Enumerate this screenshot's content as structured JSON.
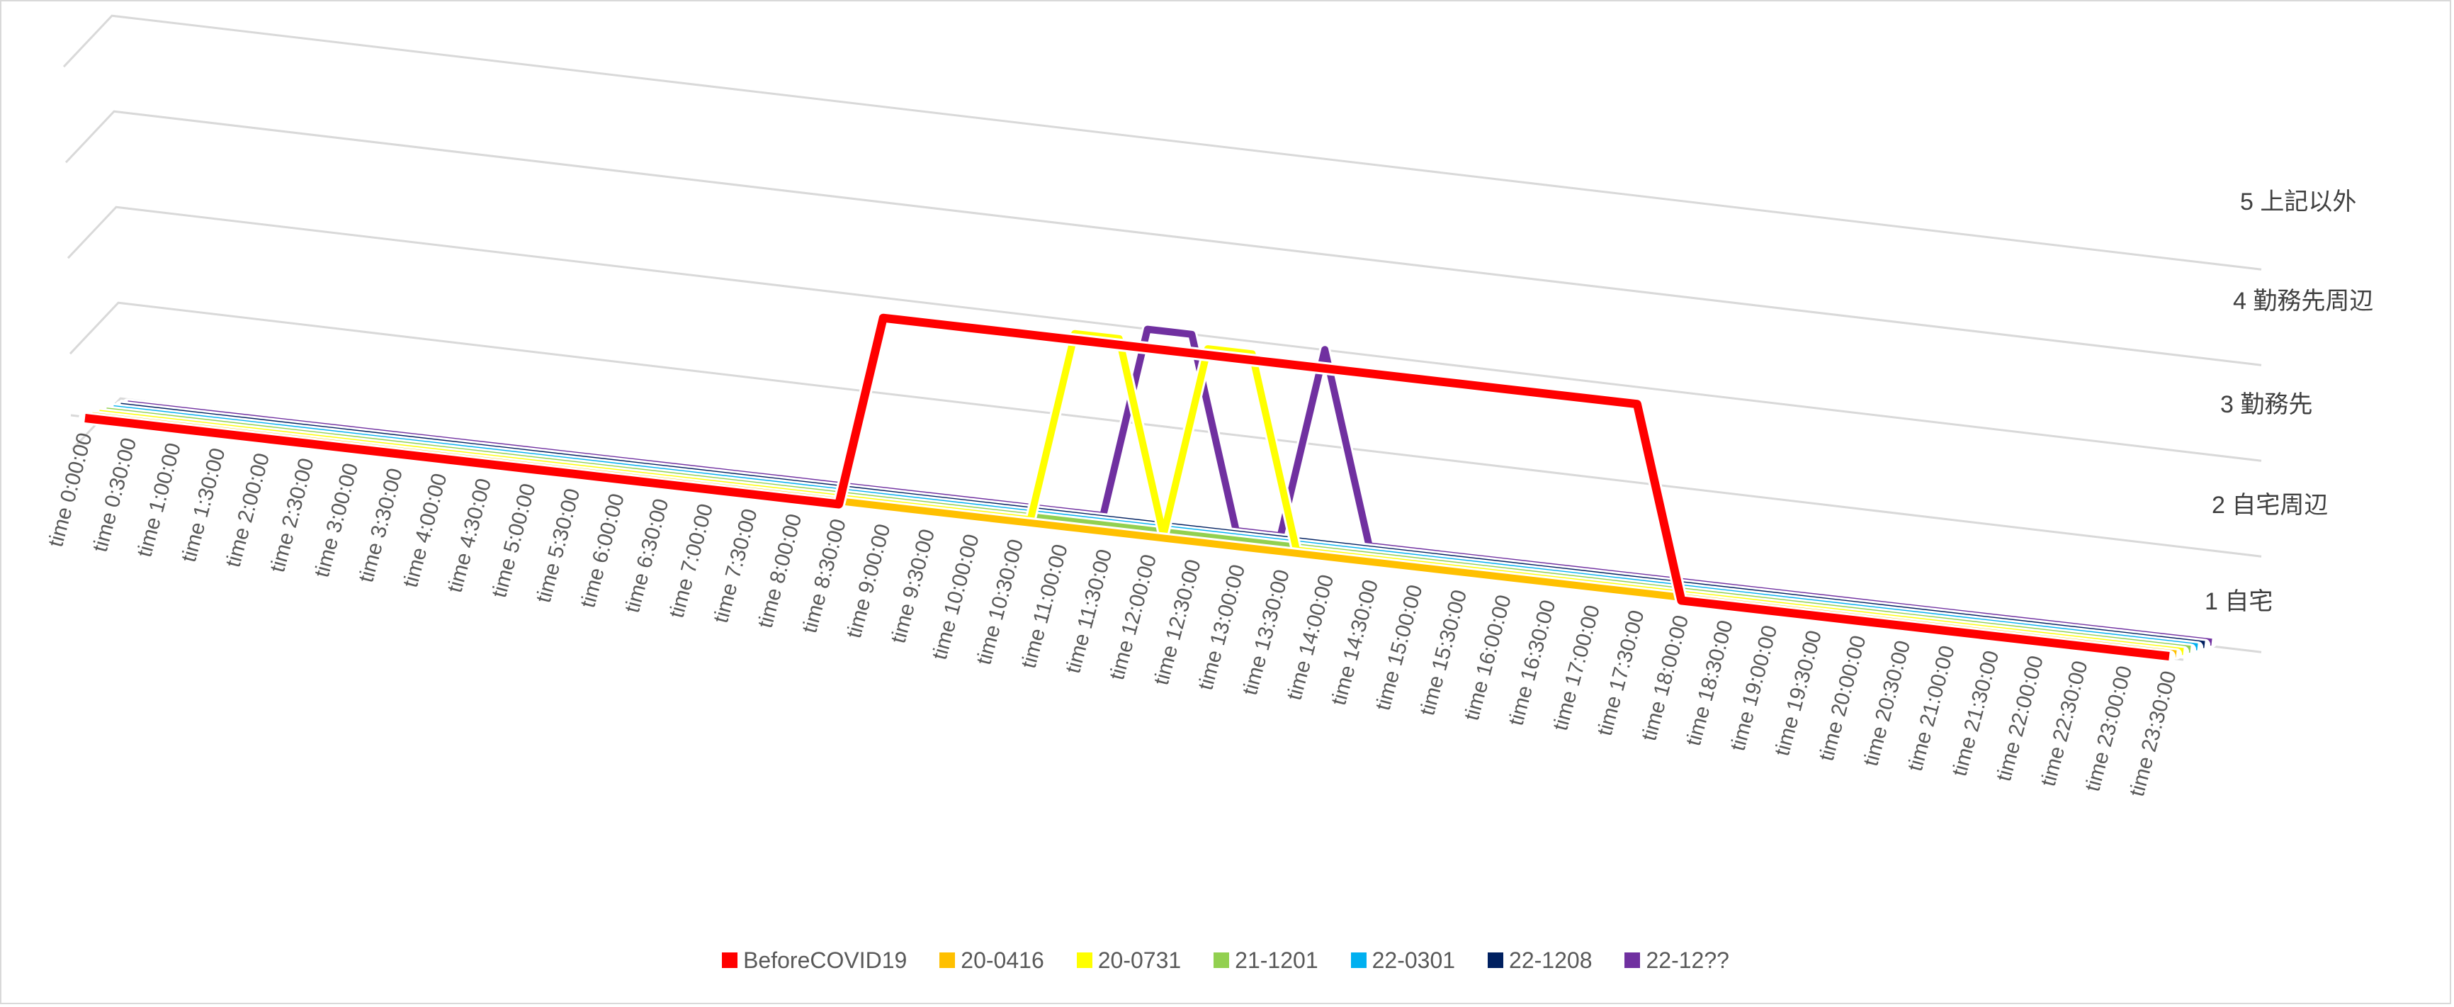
{
  "chart_data": {
    "type": "line",
    "style": "3d-line",
    "title": "",
    "xlabel": "",
    "ylabel": "",
    "categories": [
      "time 0:00:00",
      "time 0:30:00",
      "time 1:00:00",
      "time 1:30:00",
      "time 2:00:00",
      "time 2:30:00",
      "time 3:00:00",
      "time 3:30:00",
      "time 4:00:00",
      "time 4:30:00",
      "time 5:00:00",
      "time 5:30:00",
      "time 6:00:00",
      "time 6:30:00",
      "time 7:00:00",
      "time 7:30:00",
      "time 8:00:00",
      "time 8:30:00",
      "time 9:00:00",
      "time 9:30:00",
      "time 10:00:00",
      "time 10:30:00",
      "time 11:00:00",
      "time 11:30:00",
      "time 12:00:00",
      "time 12:30:00",
      "time 13:00:00",
      "time 13:30:00",
      "time 14:00:00",
      "time 14:30:00",
      "time 15:00:00",
      "time 15:30:00",
      "time 16:00:00",
      "time 16:30:00",
      "time 17:00:00",
      "time 17:30:00",
      "time 18:00:00",
      "time 18:30:00",
      "time 19:00:00",
      "time 19:30:00",
      "time 20:00:00",
      "time 20:30:00",
      "time 21:00:00",
      "time 21:30:00",
      "time 22:00:00",
      "time 22:30:00",
      "time 23:00:00",
      "time 23:30:00"
    ],
    "y_tick_labels": [
      "1 自宅",
      "2 自宅周辺",
      "3 勤務先",
      "4 勤務先周辺",
      "5 上記以外"
    ],
    "ylim": [
      1,
      5
    ],
    "grid": true,
    "legend_position": "bottom",
    "series": [
      {
        "name": "BeforeCOVID19",
        "color": "#FF0000",
        "values": [
          1,
          1,
          1,
          1,
          1,
          1,
          1,
          1,
          1,
          1,
          1,
          1,
          1,
          1,
          1,
          1,
          1,
          1,
          3,
          3,
          3,
          3,
          3,
          3,
          3,
          3,
          3,
          3,
          3,
          3,
          3,
          3,
          3,
          3,
          3,
          3,
          1,
          1,
          1,
          1,
          1,
          1,
          1,
          1,
          1,
          1,
          1,
          1
        ]
      },
      {
        "name": "20-0416",
        "color": "#FFC000",
        "values": [
          1,
          1,
          1,
          1,
          1,
          1,
          1,
          1,
          1,
          1,
          1,
          1,
          1,
          1,
          1,
          1,
          1,
          1,
          1,
          1,
          1,
          1,
          1,
          1,
          1,
          1,
          1,
          1,
          1,
          1,
          1,
          1,
          1,
          1,
          1,
          1,
          1,
          1,
          1,
          1,
          1,
          1,
          1,
          1,
          1,
          1,
          1,
          1
        ]
      },
      {
        "name": "20-0731",
        "color": "#FFFF00",
        "values": [
          1,
          1,
          1,
          1,
          1,
          1,
          1,
          1,
          1,
          1,
          1,
          1,
          1,
          1,
          1,
          1,
          1,
          1,
          1,
          1,
          1,
          1,
          3,
          3,
          1,
          3,
          3,
          1,
          1,
          1,
          1,
          1,
          1,
          1,
          1,
          1,
          1,
          1,
          1,
          1,
          1,
          1,
          1,
          1,
          1,
          1,
          1,
          1
        ]
      },
      {
        "name": "21-1201",
        "color": "#92D050",
        "values": [
          1,
          1,
          1,
          1,
          1,
          1,
          1,
          1,
          1,
          1,
          1,
          1,
          1,
          1,
          1,
          1,
          1,
          1,
          1,
          1,
          1,
          1,
          1,
          1,
          1,
          1,
          1,
          1,
          1,
          1,
          1,
          1,
          1,
          1,
          1,
          1,
          1,
          1,
          1,
          1,
          1,
          1,
          1,
          1,
          1,
          1,
          1,
          1
        ]
      },
      {
        "name": "22-0301",
        "color": "#00B0F0",
        "values": [
          1,
          1,
          1,
          1,
          1,
          1,
          1,
          1,
          1,
          1,
          1,
          1,
          1,
          1,
          1,
          1,
          1,
          1,
          1,
          1,
          1,
          1,
          1,
          1,
          1,
          1,
          1,
          1,
          1,
          1,
          1,
          1,
          1,
          1,
          1,
          1,
          1,
          1,
          1,
          1,
          1,
          1,
          1,
          1,
          1,
          1,
          1,
          1
        ]
      },
      {
        "name": "22-1208",
        "color": "#002060",
        "values": [
          1,
          1,
          1,
          1,
          1,
          1,
          1,
          1,
          1,
          1,
          1,
          1,
          1,
          1,
          1,
          1,
          1,
          1,
          1,
          1,
          1,
          1,
          1,
          1,
          1,
          1,
          1,
          1,
          1,
          1,
          1,
          1,
          1,
          1,
          1,
          1,
          1,
          1,
          1,
          1,
          1,
          1,
          1,
          1,
          1,
          1,
          1,
          1
        ]
      },
      {
        "name": "22-12??",
        "color": "#7030A0",
        "values": [
          1,
          1,
          1,
          1,
          1,
          1,
          1,
          1,
          1,
          1,
          1,
          1,
          1,
          1,
          1,
          1,
          1,
          1,
          1,
          1,
          1,
          1,
          1,
          3,
          3,
          1,
          1,
          3,
          1,
          1,
          1,
          1,
          1,
          1,
          1,
          1,
          1,
          1,
          1,
          1,
          1,
          1,
          1,
          1,
          1,
          1,
          1,
          1
        ]
      }
    ]
  }
}
